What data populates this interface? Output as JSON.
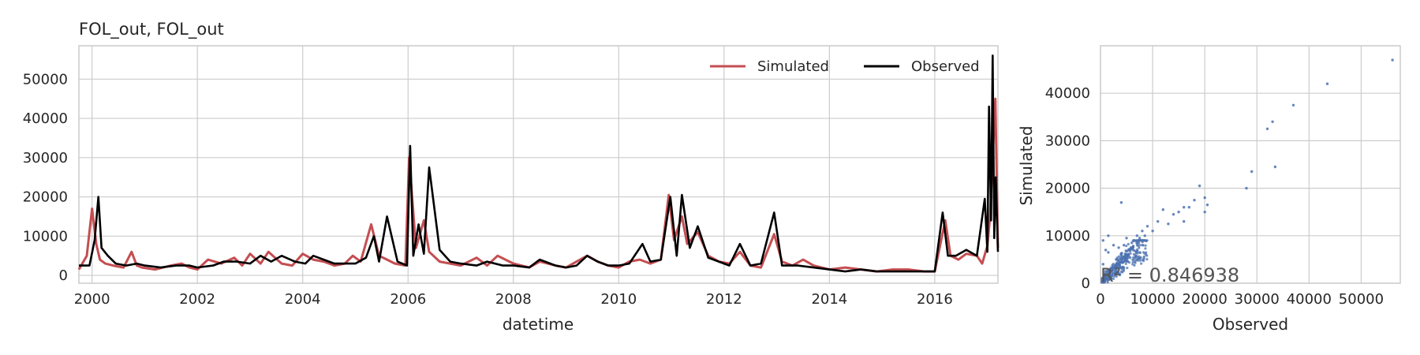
{
  "chart_data": [
    {
      "type": "line",
      "title": "FOL_out, FOL_out",
      "xlabel": "datetime",
      "ylabel": "",
      "xlim": [
        1999.75,
        2017.2
      ],
      "ylim": [
        -2000,
        58500
      ],
      "x_ticks": [
        2000,
        2002,
        2004,
        2006,
        2008,
        2010,
        2012,
        2014,
        2016
      ],
      "y_ticks": [
        0,
        10000,
        20000,
        30000,
        40000,
        50000
      ],
      "grid": true,
      "legend_position": "top-right",
      "series": [
        {
          "name": "Simulated",
          "color": "#c44e52",
          "x": [
            1999.75,
            1999.9,
            2000.0,
            2000.08,
            2000.15,
            2000.25,
            2000.4,
            2000.6,
            2000.75,
            2000.85,
            2000.95,
            2001.2,
            2001.5,
            2001.7,
            2001.85,
            2002.0,
            2002.2,
            2002.45,
            2002.7,
            2002.85,
            2003.0,
            2003.2,
            2003.35,
            2003.6,
            2003.8,
            2004.0,
            2004.2,
            2004.4,
            2004.6,
            2004.8,
            2004.95,
            2005.1,
            2005.3,
            2005.45,
            2005.6,
            2005.75,
            2005.95,
            2006.02,
            2006.15,
            2006.3,
            2006.4,
            2006.6,
            2006.8,
            2007.0,
            2007.3,
            2007.5,
            2007.7,
            2008.0,
            2008.3,
            2008.5,
            2008.8,
            2009.0,
            2009.2,
            2009.4,
            2009.6,
            2009.8,
            2010.0,
            2010.2,
            2010.4,
            2010.6,
            2010.8,
            2010.95,
            2011.05,
            2011.2,
            2011.3,
            2011.5,
            2011.7,
            2011.9,
            2012.1,
            2012.3,
            2012.5,
            2012.7,
            2012.95,
            2013.1,
            2013.3,
            2013.5,
            2013.7,
            2014.0,
            2014.3,
            2014.6,
            2014.9,
            2015.2,
            2015.5,
            2015.8,
            2016.0,
            2016.2,
            2016.3,
            2016.45,
            2016.6,
            2016.8,
            2016.9,
            2017.0,
            2017.05,
            2017.1,
            2017.15,
            2017.2
          ],
          "values": [
            1500,
            5000,
            17000,
            8000,
            4000,
            3000,
            2500,
            2000,
            6000,
            2500,
            2000,
            1500,
            2500,
            3000,
            2000,
            1500,
            4000,
            3000,
            4500,
            2500,
            5500,
            3000,
            6000,
            3000,
            2500,
            5500,
            4000,
            3500,
            2500,
            3000,
            5000,
            3500,
            13000,
            5000,
            4000,
            3000,
            2500,
            30000,
            7000,
            14000,
            6000,
            3500,
            3000,
            2500,
            4500,
            2500,
            5000,
            3000,
            2000,
            3500,
            2500,
            2000,
            3500,
            5000,
            3500,
            2500,
            2000,
            3500,
            4000,
            3000,
            4000,
            20500,
            9000,
            15000,
            8000,
            11000,
            5000,
            3500,
            3000,
            6000,
            2500,
            2000,
            10500,
            3500,
            2500,
            4000,
            2500,
            1500,
            2000,
            1500,
            1000,
            1500,
            1500,
            1000,
            1000,
            14000,
            5000,
            4000,
            5500,
            5000,
            3000,
            7500,
            15000,
            30000,
            45000,
            7000
          ]
        },
        {
          "name": "Observed",
          "color": "#000000",
          "x": [
            1999.75,
            1999.95,
            2000.05,
            2000.12,
            2000.18,
            2000.3,
            2000.45,
            2000.65,
            2000.85,
            2001.0,
            2001.3,
            2001.6,
            2001.85,
            2002.0,
            2002.3,
            2002.5,
            2002.75,
            2003.0,
            2003.2,
            2003.4,
            2003.6,
            2003.85,
            2004.05,
            2004.2,
            2004.4,
            2004.6,
            2004.8,
            2005.0,
            2005.2,
            2005.35,
            2005.45,
            2005.6,
            2005.8,
            2005.98,
            2006.04,
            2006.1,
            2006.2,
            2006.3,
            2006.4,
            2006.6,
            2006.8,
            2007.0,
            2007.3,
            2007.5,
            2007.8,
            2008.0,
            2008.3,
            2008.5,
            2008.8,
            2009.0,
            2009.2,
            2009.4,
            2009.6,
            2009.8,
            2010.0,
            2010.2,
            2010.45,
            2010.6,
            2010.8,
            2010.98,
            2011.1,
            2011.2,
            2011.35,
            2011.5,
            2011.7,
            2011.9,
            2012.1,
            2012.3,
            2012.5,
            2012.7,
            2012.95,
            2013.1,
            2013.4,
            2013.7,
            2014.0,
            2014.3,
            2014.6,
            2014.9,
            2015.2,
            2015.5,
            2015.8,
            2016.0,
            2016.15,
            2016.25,
            2016.4,
            2016.6,
            2016.8,
            2016.95,
            2017.0,
            2017.03,
            2017.07,
            2017.1,
            2017.13,
            2017.16,
            2017.2
          ],
          "values": [
            2500,
            2500,
            9000,
            20000,
            7000,
            5000,
            3000,
            2500,
            3000,
            2500,
            2000,
            2500,
            2500,
            2000,
            2500,
            3500,
            3500,
            3000,
            5000,
            3500,
            5000,
            3500,
            3000,
            5000,
            4000,
            3000,
            3000,
            3000,
            4500,
            10000,
            3500,
            15000,
            3500,
            2500,
            33000,
            5000,
            13000,
            5500,
            27500,
            6500,
            3500,
            3000,
            2500,
            3500,
            2500,
            2500,
            2000,
            4000,
            2500,
            2000,
            2500,
            5000,
            3500,
            2500,
            2500,
            3000,
            8000,
            3500,
            4000,
            20000,
            5000,
            20500,
            7000,
            12500,
            4500,
            3500,
            2500,
            8000,
            2500,
            3000,
            16000,
            2500,
            2500,
            2000,
            1500,
            1000,
            1500,
            1000,
            1000,
            1000,
            1000,
            1000,
            16000,
            5000,
            5000,
            6500,
            5000,
            19500,
            6000,
            43000,
            14000,
            56000,
            9500,
            25000,
            6000
          ]
        }
      ]
    },
    {
      "type": "scatter",
      "title": "",
      "xlabel": "Observed",
      "ylabel": "Simulated",
      "xlim": [
        0,
        57500
      ],
      "ylim": [
        0,
        50000
      ],
      "x_ticks": [
        0,
        10000,
        20000,
        30000,
        40000,
        50000
      ],
      "y_ticks": [
        0,
        10000,
        20000,
        30000,
        40000
      ],
      "grid": true,
      "color": "#4c72b0",
      "annotation": "R² = 0.846938",
      "points": [
        [
          56000,
          47000
        ],
        [
          43500,
          42000
        ],
        [
          37000,
          37500
        ],
        [
          33000,
          34000
        ],
        [
          32000,
          32500
        ],
        [
          33500,
          24500
        ],
        [
          29000,
          23500
        ],
        [
          28000,
          20000
        ],
        [
          20000,
          18000
        ],
        [
          19000,
          20500
        ],
        [
          20500,
          16500
        ],
        [
          20000,
          15000
        ],
        [
          18000,
          17500
        ],
        [
          17000,
          16000
        ],
        [
          16000,
          13000
        ],
        [
          16000,
          16000
        ],
        [
          15000,
          15000
        ],
        [
          14000,
          14500
        ],
        [
          13000,
          12500
        ],
        [
          12000,
          15500
        ],
        [
          11000,
          13000
        ],
        [
          10000,
          11000
        ],
        [
          9000,
          12000
        ],
        [
          8500,
          10000
        ],
        [
          8000,
          11000
        ],
        [
          7500,
          9500
        ],
        [
          7000,
          10000
        ],
        [
          6500,
          9000
        ],
        [
          6000,
          8500
        ],
        [
          5500,
          7000
        ],
        [
          5000,
          9500
        ],
        [
          4500,
          8000
        ],
        [
          4000,
          6000
        ],
        [
          4000,
          17000
        ],
        [
          3500,
          7500
        ],
        [
          3000,
          5000
        ],
        [
          2500,
          8000
        ],
        [
          2000,
          3000
        ],
        [
          1500,
          10000
        ],
        [
          1500,
          6500
        ],
        [
          1000,
          2500
        ],
        [
          1000,
          7000
        ],
        [
          500,
          4000
        ],
        [
          500,
          9000
        ]
      ],
      "dense_cluster": {
        "x_range": [
          300,
          9000
        ],
        "y_range": [
          200,
          9000
        ],
        "count": 420
      }
    }
  ]
}
